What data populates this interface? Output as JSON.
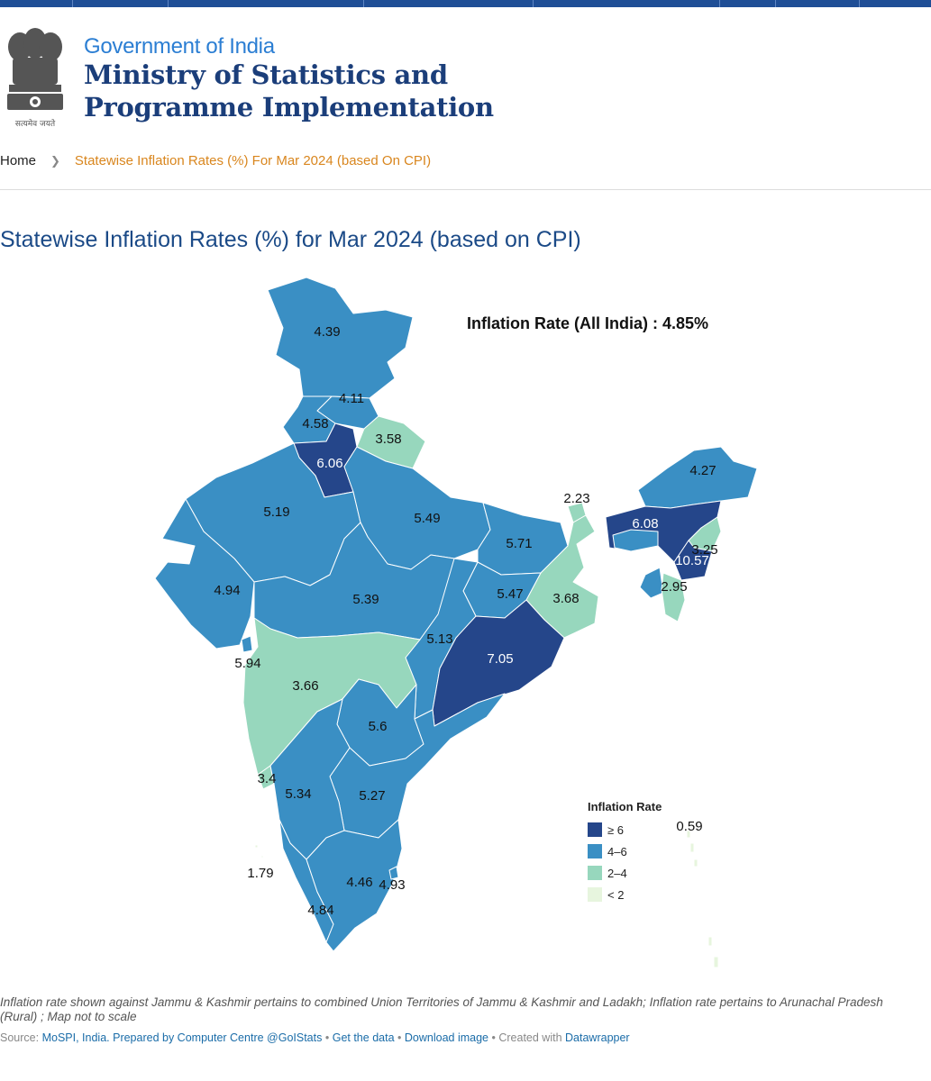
{
  "header": {
    "gov_label": "Government of India",
    "ministry_line1": "Ministry of Statistics and",
    "ministry_line2": "Programme Implementation",
    "emblem_motto": "सत्यमेव जयते"
  },
  "breadcrumb": {
    "home": "Home",
    "current": "Statewise Inflation Rates (%) For Mar 2024 (based On CPI)"
  },
  "page_title": "Statewise Inflation Rates (%) for Mar 2024 (based on CPI)",
  "map": {
    "all_india_label": "Inflation Rate (All India) : 4.85%",
    "states": [
      {
        "name": "Jammu & Kashmir",
        "value": "4.39",
        "category": "4-6"
      },
      {
        "name": "Himachal Pradesh",
        "value": "4.11",
        "category": "4-6"
      },
      {
        "name": "Punjab",
        "value": "4.58",
        "category": "4-6"
      },
      {
        "name": "Uttarakhand",
        "value": "3.58",
        "category": "2-4"
      },
      {
        "name": "Haryana",
        "value": "6.06",
        "category": ">=6"
      },
      {
        "name": "Rajasthan",
        "value": "5.19",
        "category": "4-6"
      },
      {
        "name": "Uttar Pradesh",
        "value": "5.49",
        "category": "4-6"
      },
      {
        "name": "Bihar",
        "value": "5.71",
        "category": "4-6"
      },
      {
        "name": "Sikkim",
        "value": "2.23",
        "category": "2-4"
      },
      {
        "name": "Arunachal Pradesh",
        "value": "4.27",
        "category": "4-6"
      },
      {
        "name": "Assam",
        "value": "6.08",
        "category": ">=6"
      },
      {
        "name": "Nagaland",
        "value": "3.25",
        "category": "2-4"
      },
      {
        "name": "Manipur",
        "value": "10.57",
        "category": ">=6"
      },
      {
        "name": "Mizoram",
        "value": "2.95",
        "category": "2-4"
      },
      {
        "name": "Gujarat",
        "value": "4.94",
        "category": "4-6"
      },
      {
        "name": "Madhya Pradesh",
        "value": "5.39",
        "category": "4-6"
      },
      {
        "name": "Jharkhand",
        "value": "5.47",
        "category": "4-6"
      },
      {
        "name": "West Bengal",
        "value": "3.68",
        "category": "2-4"
      },
      {
        "name": "Chhattisgarh",
        "value": "5.13",
        "category": "4-6"
      },
      {
        "name": "Odisha",
        "value": "7.05",
        "category": ">=6"
      },
      {
        "name": "Dadra & Nagar Haveli and Daman & Diu",
        "value": "5.94",
        "category": "4-6"
      },
      {
        "name": "Maharashtra",
        "value": "3.66",
        "category": "2-4"
      },
      {
        "name": "Telangana",
        "value": "5.6",
        "category": "4-6"
      },
      {
        "name": "Goa",
        "value": "3.4",
        "category": "2-4"
      },
      {
        "name": "Karnataka",
        "value": "5.34",
        "category": "4-6"
      },
      {
        "name": "Andhra Pradesh",
        "value": "5.27",
        "category": "4-6"
      },
      {
        "name": "Lakshadweep",
        "value": "1.79",
        "category": "<2"
      },
      {
        "name": "Tamil Nadu",
        "value": "4.46",
        "category": "4-6"
      },
      {
        "name": "Puducherry",
        "value": "4.93",
        "category": "4-6"
      },
      {
        "name": "Kerala",
        "value": "4.84",
        "category": "4-6"
      },
      {
        "name": "Andaman & Nicobar Islands",
        "value": "0.59",
        "category": "<2"
      }
    ]
  },
  "legend": {
    "title": "Inflation Rate",
    "items": [
      {
        "label": "≥ 6",
        "color": "#25468a"
      },
      {
        "label": "4–6",
        "color": "#3a8fc4"
      },
      {
        "label": "2–4",
        "color": "#97d7bd"
      },
      {
        "label": "< 2",
        "color": "#e7f5de"
      }
    ]
  },
  "note": "Inflation rate shown against Jammu & Kashmir pertains to combined Union Territories of Jammu & Kashmir and Ladakh; Inflation rate pertains to Arunachal Pradesh (Rural) ; Map not to scale",
  "source": {
    "prefix": "Source:",
    "source_link": "MoSPI, India.",
    "prepared": "Prepared by Computer Centre @GoIStats",
    "get_data": "Get the data",
    "download": "Download image",
    "created": "Created with",
    "tool": "Datawrapper",
    "dot": "•"
  }
}
